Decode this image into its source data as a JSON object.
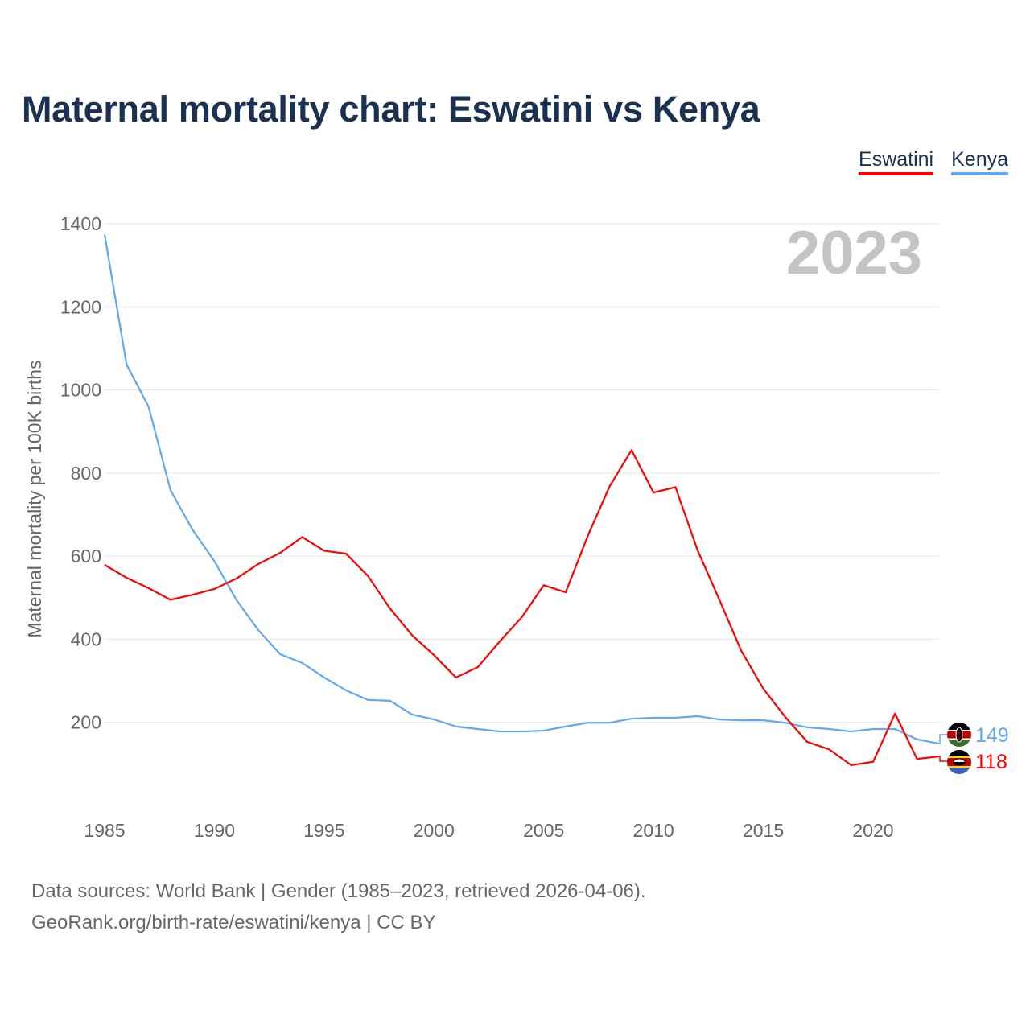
{
  "title": "Maternal mortality chart: Eswatini vs Kenya",
  "source_line1": "Data sources: World Bank | Gender (1985–2023, retrieved 2026-04-06).",
  "source_line2": "GeoRank.org/birth-rate/eswatini/kenya | CC BY",
  "chart_data": {
    "type": "line",
    "title": "Maternal mortality chart: Eswatini vs Kenya",
    "xlabel": "",
    "ylabel": "Maternal mortality per 100K births",
    "year_label": "2023",
    "xlim": [
      1985,
      2023
    ],
    "ylim": [
      0,
      1400
    ],
    "x_ticks": [
      1985,
      1990,
      1995,
      2000,
      2005,
      2010,
      2015,
      2020
    ],
    "y_ticks": [
      200,
      400,
      600,
      800,
      1000,
      1200,
      1400
    ],
    "grid": true,
    "legend_position": "top-right",
    "x": [
      1985,
      1986,
      1987,
      1988,
      1989,
      1990,
      1991,
      1992,
      1993,
      1994,
      1995,
      1996,
      1997,
      1998,
      1999,
      2000,
      2001,
      2002,
      2003,
      2004,
      2005,
      2006,
      2007,
      2008,
      2009,
      2010,
      2011,
      2012,
      2013,
      2014,
      2015,
      2016,
      2017,
      2018,
      2019,
      2020,
      2021,
      2022,
      2023
    ],
    "series": [
      {
        "name": "Eswatini",
        "color": "#ff0000",
        "end_label": "118",
        "flag": "eswatini-flag",
        "values": [
          579,
          548,
          523,
          495,
          507,
          521,
          546,
          581,
          608,
          646,
          613,
          606,
          552,
          474,
          410,
          362,
          308,
          333,
          395,
          453,
          530,
          513,
          648,
          768,
          855,
          753,
          766,
          615,
          495,
          372,
          281,
          213,
          153,
          135,
          97,
          105,
          221,
          112,
          118
        ]
      },
      {
        "name": "Kenya",
        "color": "#62a8ee",
        "end_label": "149",
        "flag": "kenya-flag",
        "values": [
          1374,
          1061,
          960,
          759,
          664,
          588,
          495,
          422,
          364,
          343,
          308,
          277,
          254,
          252,
          219,
          207,
          190,
          184,
          178,
          178,
          180,
          190,
          199,
          199,
          209,
          211,
          211,
          215,
          207,
          205,
          205,
          199,
          188,
          184,
          178,
          184,
          184,
          159,
          149
        ]
      }
    ]
  }
}
